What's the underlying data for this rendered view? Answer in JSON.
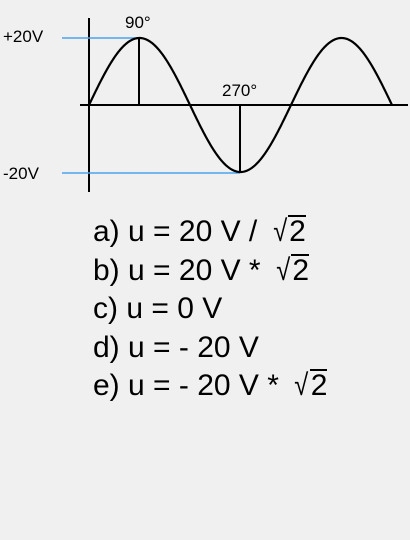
{
  "diagram": {
    "amplitude_top_label": "+20V",
    "amplitude_bottom_label": "-20V",
    "angle_90_label": "90°",
    "angle_270_label": "270°"
  },
  "colors": {
    "guide_line": "#4aa3f0",
    "curve": "#000000",
    "background": "#f0f0f0"
  },
  "options": [
    {
      "prefix": "a) u = 20 V / ",
      "root": "2"
    },
    {
      "prefix": "b) u = 20 V * ",
      "root": "2"
    },
    {
      "prefix": "c) u = 0 V",
      "root": ""
    },
    {
      "prefix": "d) u = - 20 V",
      "root": ""
    },
    {
      "prefix": "e) u = - 20 V * ",
      "root": "2"
    }
  ]
}
